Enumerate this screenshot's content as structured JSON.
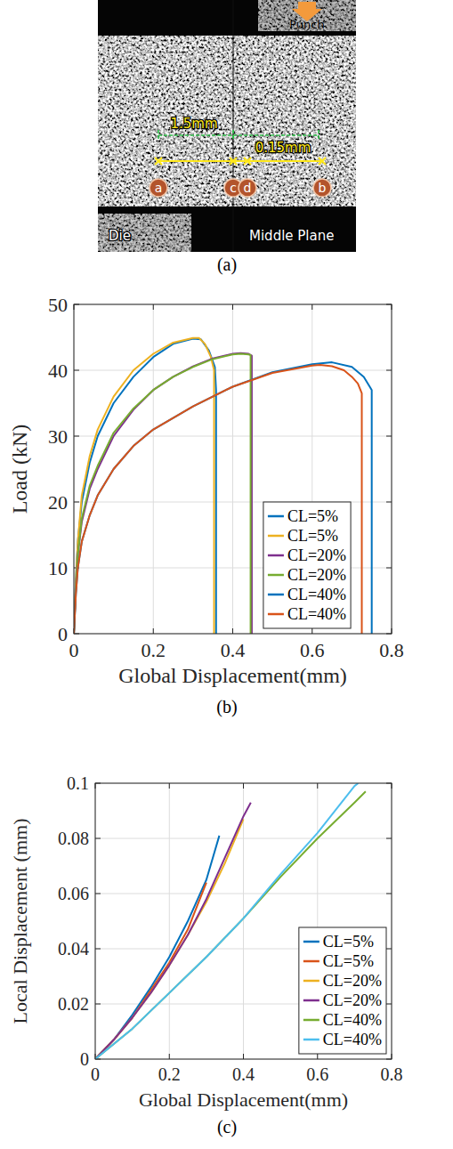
{
  "image_panel": {
    "caption": "(a)",
    "punch_label": "Punch",
    "die_label": "Die",
    "plane_label": "Middle Plane",
    "dimensions": [
      "1.5mm",
      "0.15mm"
    ],
    "points": [
      "a",
      "c",
      "d",
      "b"
    ]
  },
  "chart_data": [
    {
      "type": "line",
      "caption": "(b)",
      "x_label": "Global Displacement(mm)",
      "y_label": "Load (kN)",
      "xlim": [
        0,
        0.8
      ],
      "xticks": [
        0,
        0.2,
        0.4,
        0.6,
        0.8
      ],
      "ylim": [
        0,
        50
      ],
      "yticks": [
        0,
        10,
        20,
        30,
        40,
        50
      ],
      "grid": true,
      "legend": "lower center",
      "series": [
        {
          "name": "CL=5%",
          "color": "#0072BD",
          "x": [
            0,
            0.005,
            0.01,
            0.02,
            0.04,
            0.06,
            0.1,
            0.15,
            0.2,
            0.25,
            0.3,
            0.32,
            0.34,
            0.355,
            0.358,
            0.358
          ],
          "values": [
            0,
            8,
            14,
            20,
            26,
            30,
            35,
            39,
            42,
            44,
            44.8,
            44.7,
            43,
            40.5,
            37,
            0
          ]
        },
        {
          "name": "CL=5%",
          "color": "#EDB120",
          "x": [
            0,
            0.005,
            0.01,
            0.02,
            0.04,
            0.06,
            0.1,
            0.15,
            0.2,
            0.25,
            0.3,
            0.315,
            0.33,
            0.345,
            0.353,
            0.353
          ],
          "values": [
            0,
            8,
            14,
            21,
            27,
            31,
            36,
            40,
            42.5,
            44.2,
            44.9,
            44.9,
            44,
            42,
            40,
            0
          ]
        },
        {
          "name": "CL=20%",
          "color": "#7E2F8E",
          "x": [
            0,
            0.005,
            0.01,
            0.02,
            0.04,
            0.06,
            0.1,
            0.15,
            0.2,
            0.25,
            0.3,
            0.35,
            0.4,
            0.42,
            0.44,
            0.448,
            0.448
          ],
          "values": [
            0,
            7,
            12,
            17,
            22,
            25,
            30,
            34,
            37,
            39,
            40.6,
            41.8,
            42.5,
            42.6,
            42.5,
            42.2,
            0
          ]
        },
        {
          "name": "CL=20%",
          "color": "#77AC30",
          "x": [
            0,
            0.005,
            0.01,
            0.02,
            0.04,
            0.06,
            0.1,
            0.15,
            0.2,
            0.25,
            0.3,
            0.35,
            0.4,
            0.42,
            0.44,
            0.445,
            0.445
          ],
          "values": [
            0,
            7,
            12,
            17.5,
            22.5,
            25.5,
            30.5,
            34.2,
            37,
            39,
            40.5,
            41.7,
            42.4,
            42.5,
            42.4,
            42.3,
            0
          ]
        },
        {
          "name": "CL=40%",
          "color": "#0072BD",
          "x": [
            0,
            0.005,
            0.01,
            0.02,
            0.04,
            0.06,
            0.1,
            0.15,
            0.2,
            0.3,
            0.4,
            0.5,
            0.6,
            0.65,
            0.7,
            0.73,
            0.745,
            0.75,
            0.75
          ],
          "values": [
            0,
            6,
            10,
            14,
            18,
            21,
            25,
            28.5,
            31,
            34.5,
            37.5,
            39.7,
            40.9,
            41.2,
            40.5,
            39,
            37.5,
            37,
            0
          ]
        },
        {
          "name": "CL=40%",
          "color": "#D95319",
          "x": [
            0,
            0.005,
            0.01,
            0.02,
            0.04,
            0.06,
            0.1,
            0.15,
            0.2,
            0.3,
            0.4,
            0.5,
            0.6,
            0.62,
            0.65,
            0.68,
            0.7,
            0.715,
            0.725,
            0.725
          ],
          "values": [
            0,
            6,
            10,
            14,
            18,
            21,
            25,
            28.5,
            31,
            34.5,
            37.5,
            39.6,
            40.7,
            40.8,
            40.6,
            40,
            39,
            38,
            36.5,
            0
          ]
        }
      ]
    },
    {
      "type": "line",
      "caption": "(c)",
      "x_label": "Global Displacement(mm)",
      "y_label": "Local Displacement (mm)",
      "xlim": [
        0,
        0.8
      ],
      "xticks": [
        0,
        0.2,
        0.4,
        0.6,
        0.8
      ],
      "ylim": [
        0,
        0.1
      ],
      "yticks": [
        0,
        0.02,
        0.04,
        0.06,
        0.08,
        0.1
      ],
      "grid": true,
      "legend": "lower right",
      "series": [
        {
          "name": "CL=5%",
          "color": "#0072BD",
          "x": [
            0,
            0.05,
            0.1,
            0.15,
            0.2,
            0.25,
            0.3,
            0.335
          ],
          "values": [
            0,
            0.007,
            0.016,
            0.026,
            0.037,
            0.05,
            0.065,
            0.081
          ]
        },
        {
          "name": "CL=5%",
          "color": "#D95319",
          "x": [
            0,
            0.05,
            0.1,
            0.15,
            0.2,
            0.25,
            0.3
          ],
          "values": [
            0,
            0.007,
            0.015,
            0.025,
            0.035,
            0.047,
            0.064
          ]
        },
        {
          "name": "CL=20%",
          "color": "#EDB120",
          "x": [
            0,
            0.05,
            0.1,
            0.15,
            0.2,
            0.25,
            0.3,
            0.35,
            0.4
          ],
          "values": [
            0,
            0.007,
            0.015,
            0.024,
            0.034,
            0.045,
            0.057,
            0.071,
            0.087
          ]
        },
        {
          "name": "CL=20%",
          "color": "#7E2F8E",
          "x": [
            0,
            0.05,
            0.1,
            0.15,
            0.2,
            0.25,
            0.3,
            0.35,
            0.4,
            0.42
          ],
          "values": [
            0,
            0.007,
            0.015,
            0.024,
            0.034,
            0.045,
            0.058,
            0.073,
            0.088,
            0.093
          ]
        },
        {
          "name": "CL=40%",
          "color": "#77AC30",
          "x": [
            0,
            0.1,
            0.2,
            0.3,
            0.4,
            0.5,
            0.6,
            0.7,
            0.73
          ],
          "values": [
            0,
            0.011,
            0.024,
            0.037,
            0.051,
            0.066,
            0.08,
            0.093,
            0.097
          ]
        },
        {
          "name": "CL=40%",
          "color": "#4DBEEE",
          "x": [
            0,
            0.1,
            0.2,
            0.3,
            0.4,
            0.5,
            0.6,
            0.7,
            0.71
          ],
          "values": [
            0,
            0.011,
            0.024,
            0.037,
            0.051,
            0.067,
            0.082,
            0.099,
            0.1
          ]
        }
      ]
    }
  ]
}
